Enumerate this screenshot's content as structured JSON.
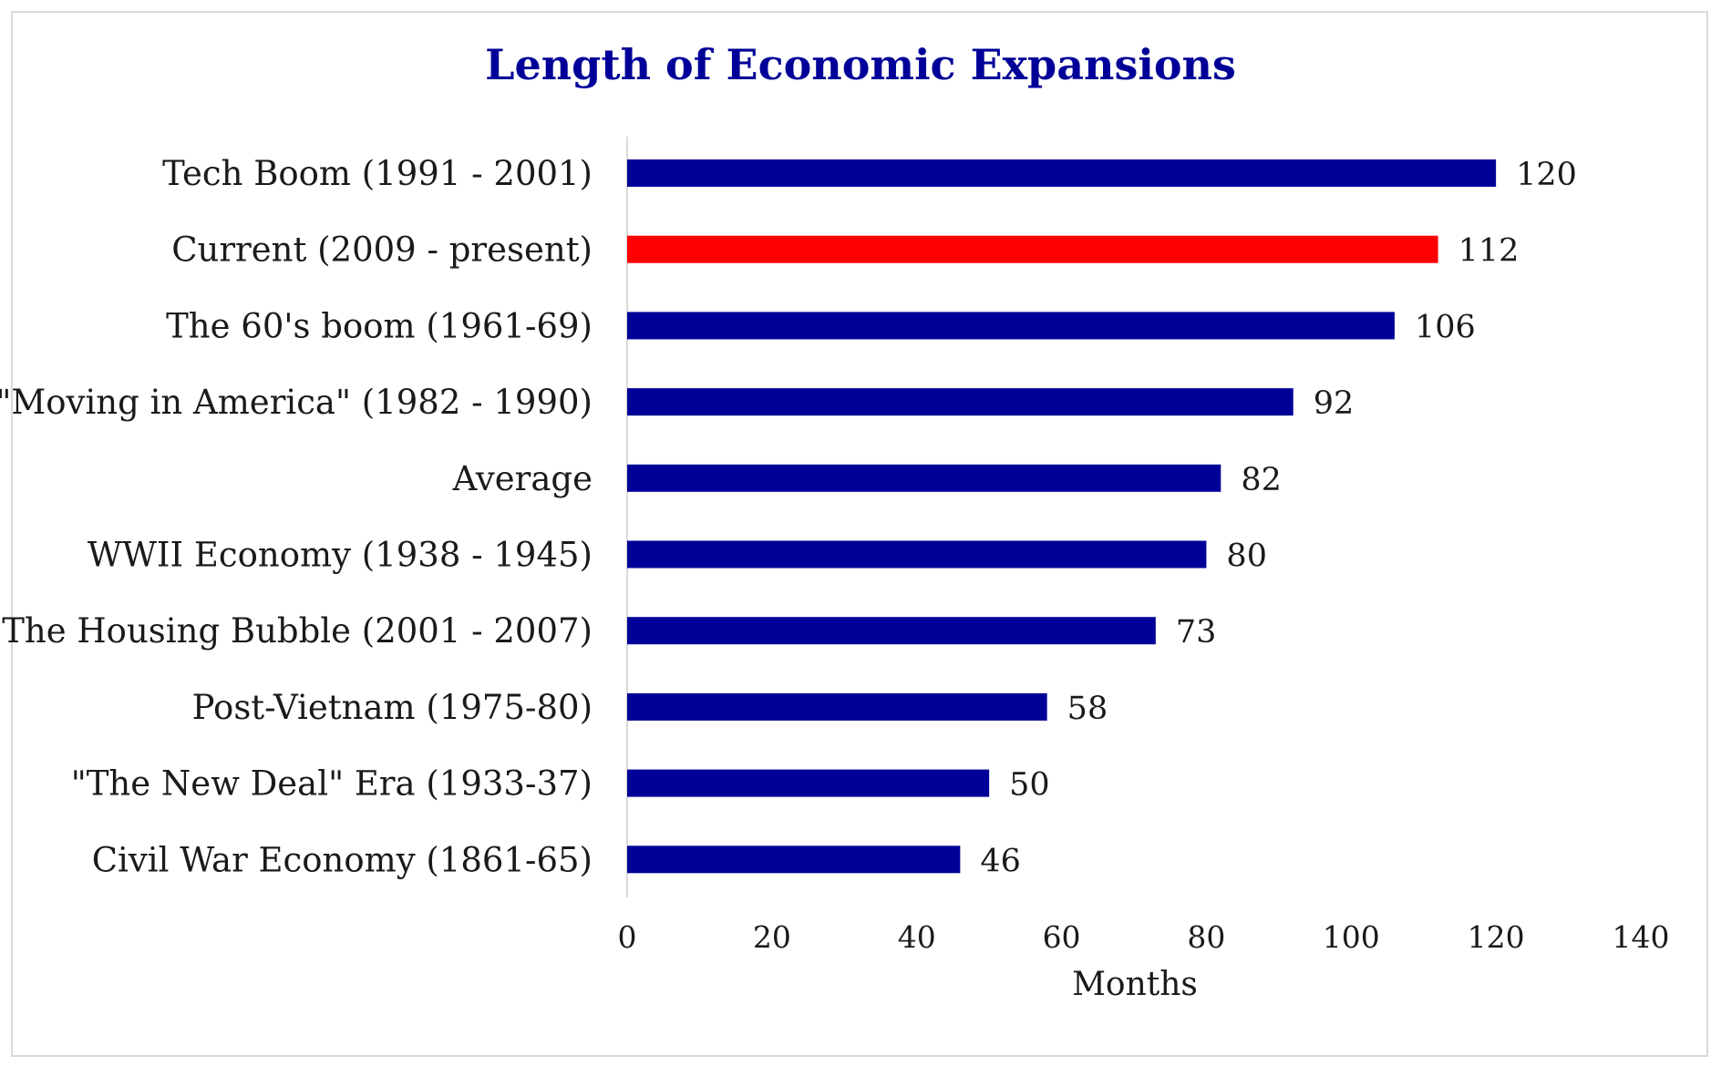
{
  "chart_data": {
    "type": "bar",
    "orientation": "horizontal",
    "title": "Length of Economic Expansions",
    "xlabel": "Months",
    "ylabel": "",
    "categories": [
      "Tech Boom (1991 - 2001)",
      "Current (2009 - present)",
      "The 60's boom (1961-69)",
      "\"Moving in America\" (1982 - 1990)",
      "Average",
      "WWII Economy (1938 - 1945)",
      "The Housing Bubble (2001 - 2007)",
      "Post-Vietnam (1975-80)",
      "\"The New Deal\" Era (1933-37)",
      "Civil War Economy (1861-65)"
    ],
    "values": [
      120,
      112,
      106,
      92,
      82,
      80,
      73,
      58,
      50,
      46
    ],
    "data_labels": [
      "120",
      "112",
      "106",
      "92",
      "82",
      "80",
      "73",
      "58",
      "50",
      "46"
    ],
    "highlighted_category": "Current (2009 - present)",
    "xlim": [
      0,
      140
    ],
    "x_ticks": [
      0,
      20,
      40,
      60,
      80,
      100,
      120,
      140
    ],
    "x_tick_labels": [
      "0",
      "20",
      "40",
      "60",
      "80",
      "100",
      "120",
      "140"
    ],
    "grid": false,
    "legend": "none",
    "colors": {
      "bar": "#000099",
      "highlight": "#ff0000",
      "title": "#000099",
      "axis_line": "#d9d9d9",
      "frame": "#d9d9d9",
      "text": "#1a1a1a"
    }
  }
}
